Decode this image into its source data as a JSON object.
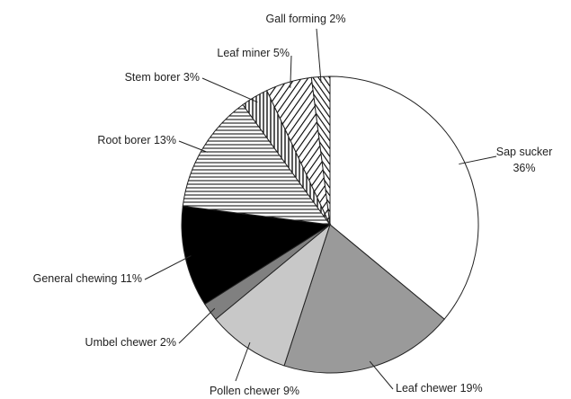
{
  "chart_data": {
    "type": "pie",
    "categories": [
      "Sap sucker",
      "Leaf chewer",
      "Pollen chewer",
      "Umbel chewer",
      "General chewing",
      "Root borer",
      "Stem borer",
      "Leaf miner",
      "Gall forming"
    ],
    "values": [
      36,
      19,
      9,
      2,
      11,
      13,
      3,
      5,
      2
    ],
    "value_labels": [
      "36%",
      "19%",
      "9%",
      "2%",
      "11%",
      "13%",
      "3%",
      "5%",
      "2%"
    ],
    "colors": [
      "#ffffff",
      "#9a9a9a",
      "#c8c8c8",
      "#808080",
      "#000000",
      "#ffffff",
      "#ffffff",
      "#ffffff",
      "#ffffff"
    ],
    "patterns": [
      "none",
      "none",
      "none",
      "none",
      "none",
      "horizontal",
      "vertical",
      "diagonal",
      "diagonal-back"
    ],
    "start_angle": 0,
    "direction": "clockwise"
  }
}
